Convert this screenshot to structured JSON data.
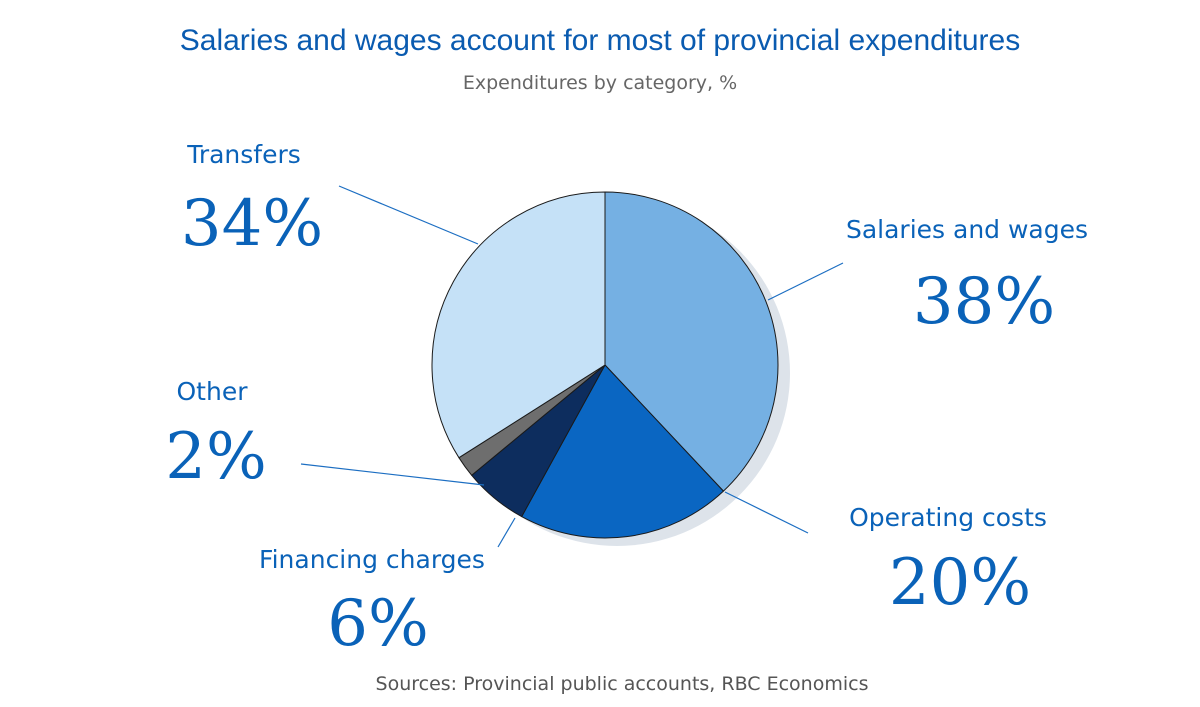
{
  "title": "Salaries and wages account for most of provincial expenditures",
  "subtitle": "Expenditures by category, %",
  "source": "Sources: Provincial public accounts, RBC Economics",
  "chart_data": {
    "type": "pie",
    "title": "Salaries and wages account for most of provincial expenditures",
    "subtitle": "Expenditures by category, %",
    "start": "12 o'clock, clockwise",
    "slices": [
      {
        "label": "Salaries and wages",
        "value": 38,
        "display": "38%",
        "color": "#75b0e3"
      },
      {
        "label": "Operating costs",
        "value": 20,
        "display": "20%",
        "color": "#0a66c2"
      },
      {
        "label": "Financing charges",
        "value": 6,
        "display": "6%",
        "color": "#0d2d5e"
      },
      {
        "label": "Other",
        "value": 2,
        "display": "2%",
        "color": "#6e6e6e"
      },
      {
        "label": "Transfers",
        "value": 34,
        "display": "34%",
        "color": "#c5e1f7"
      }
    ],
    "source": "Sources: Provincial public accounts, RBC Economics"
  }
}
